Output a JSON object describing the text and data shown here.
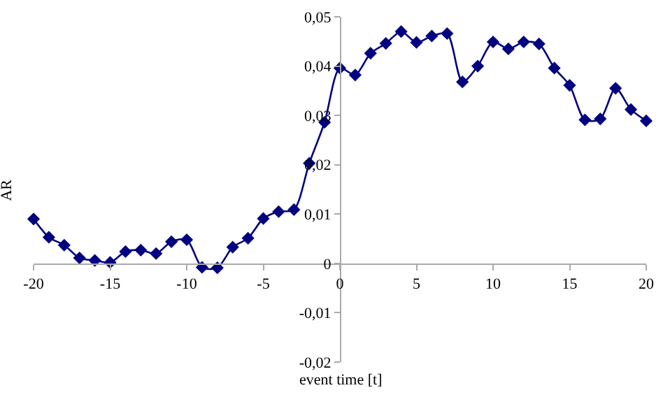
{
  "chart_data": {
    "type": "line",
    "xlabel": "event time [t]",
    "ylabel": "AR",
    "x": [
      -20,
      -19,
      -18,
      -17,
      -16,
      -15,
      -14,
      -13,
      -12,
      -11,
      -10,
      -9,
      -8,
      -7,
      -6,
      -5,
      -4,
      -3,
      -2,
      -1,
      0,
      1,
      2,
      3,
      4,
      5,
      6,
      7,
      8,
      9,
      10,
      11,
      12,
      13,
      14,
      15,
      16,
      17,
      18,
      19,
      20
    ],
    "series": [
      {
        "color": "#000080",
        "values": [
          0.009,
          0.0053,
          0.0037,
          0.0011,
          0.0006,
          0.0002,
          0.0024,
          0.0027,
          0.002,
          0.0044,
          0.0048,
          -0.0008,
          -0.0009,
          0.0033,
          0.0051,
          0.0091,
          0.0105,
          0.0109,
          0.0203,
          0.0286,
          0.0396,
          0.0382,
          0.0426,
          0.0446,
          0.047,
          0.0448,
          0.0461,
          0.0466,
          0.0368,
          0.04,
          0.0449,
          0.0435,
          0.0449,
          0.0445,
          0.0396,
          0.0361,
          0.0291,
          0.0293,
          0.0355,
          0.0312,
          0.0289
        ]
      }
    ],
    "xlim": [
      -20,
      20
    ],
    "xticks": [
      -20,
      -15,
      -10,
      -5,
      0,
      5,
      10,
      15,
      20
    ],
    "ylim": [
      -0.02,
      0.05
    ],
    "yticks": [
      {
        "value": -0.02,
        "label": "-0,02"
      },
      {
        "value": -0.01,
        "label": "-0,01"
      },
      0,
      {
        "value": 0.01,
        "label": "0,01"
      },
      {
        "value": 0.02,
        "label": "0,02"
      },
      {
        "value": 0.03,
        "label": "0,03"
      },
      {
        "value": 0.04,
        "label": "0,04"
      },
      {
        "value": 0.05,
        "label": "0,05"
      }
    ],
    "marker": "diamond",
    "line_style": "solid"
  }
}
